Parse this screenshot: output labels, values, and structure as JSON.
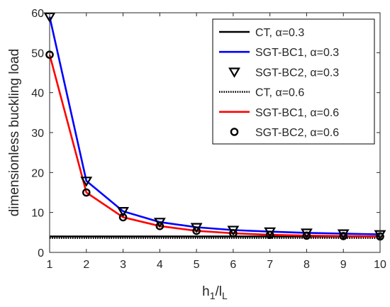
{
  "chart_data": {
    "type": "line",
    "xlabel": "h1/lL",
    "ylabel": "dimensionless buckling load",
    "xlim": [
      1,
      10
    ],
    "ylim": [
      0,
      60
    ],
    "xticks": [
      1,
      2,
      3,
      4,
      5,
      6,
      7,
      8,
      9,
      10
    ],
    "yticks": [
      0,
      10,
      20,
      30,
      40,
      50,
      60
    ],
    "grid": false,
    "legend_position": "top-right",
    "x": [
      1,
      2,
      3,
      4,
      5,
      6,
      7,
      8,
      9,
      10
    ],
    "series": [
      {
        "name": "CT, α=0.3",
        "style": "solid",
        "marker": "none",
        "color": "#000000",
        "values": [
          4.0,
          4.0,
          4.0,
          4.0,
          4.0,
          4.0,
          4.0,
          4.0,
          4.0,
          4.0
        ]
      },
      {
        "name": "SGT-BC1, α=0.3",
        "style": "solid",
        "marker": "none",
        "color": "#0000ff",
        "values": [
          59.0,
          17.9,
          10.3,
          7.6,
          6.3,
          5.6,
          5.2,
          4.9,
          4.7,
          4.5
        ]
      },
      {
        "name": "SGT-BC2, α=0.3",
        "style": "none",
        "marker": "triangle-down",
        "color": "#000000",
        "values": [
          59.0,
          17.9,
          10.3,
          7.6,
          6.3,
          5.6,
          5.2,
          4.9,
          4.7,
          4.5
        ]
      },
      {
        "name": "CT, α=0.6",
        "style": "dotted",
        "marker": "none",
        "color": "#000000",
        "values": [
          3.6,
          3.6,
          3.6,
          3.6,
          3.6,
          3.6,
          3.6,
          3.6,
          3.6,
          3.6
        ]
      },
      {
        "name": "SGT-BC1, α=0.6",
        "style": "solid",
        "marker": "none",
        "color": "#ff0000",
        "values": [
          49.5,
          15.0,
          8.8,
          6.6,
          5.4,
          4.8,
          4.4,
          4.2,
          4.1,
          4.0
        ]
      },
      {
        "name": "SGT-BC2, α=0.6",
        "style": "none",
        "marker": "circle",
        "color": "#000000",
        "values": [
          49.5,
          15.0,
          8.8,
          6.6,
          5.4,
          4.8,
          4.4,
          4.2,
          4.1,
          4.0
        ]
      }
    ]
  }
}
